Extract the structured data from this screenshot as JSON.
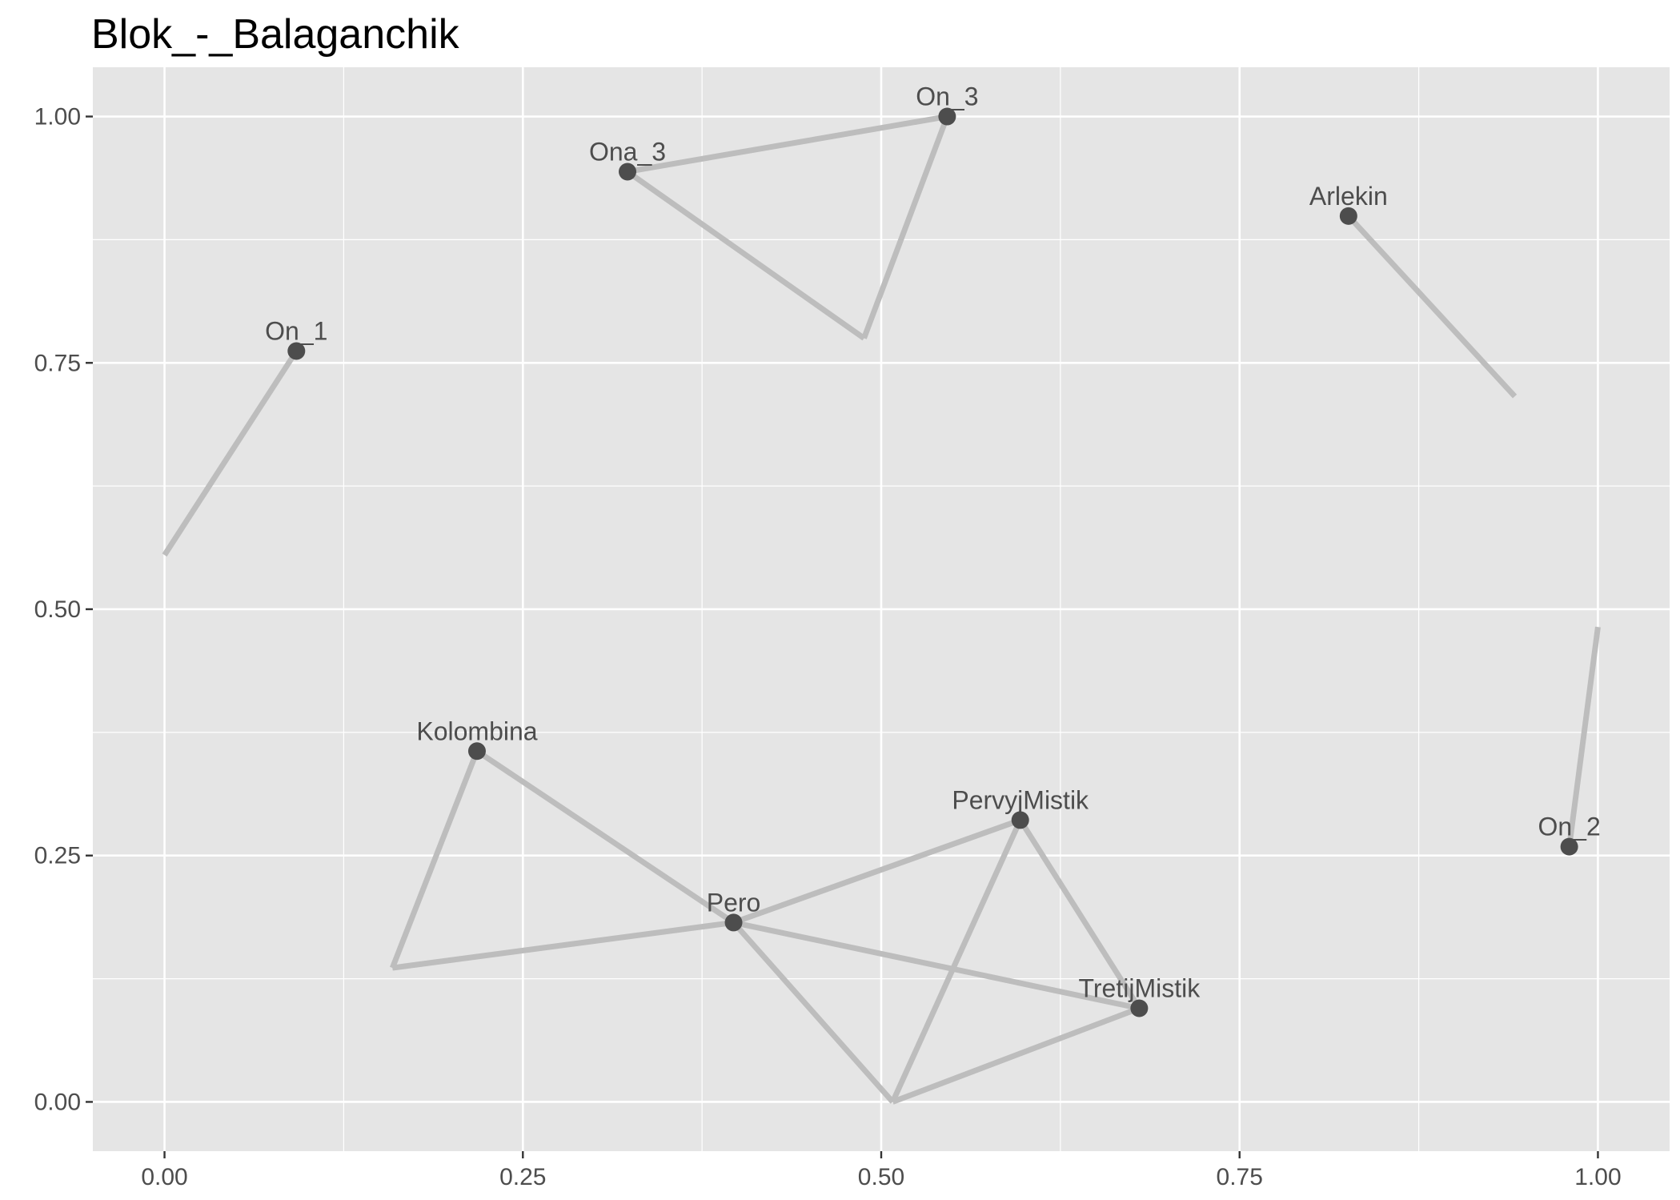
{
  "chart_data": {
    "type": "scatter",
    "title": "Blok_-_Balaganchik",
    "xlabel": "",
    "ylabel": "",
    "xlim": [
      -0.05,
      1.05
    ],
    "ylim": [
      -0.05,
      1.05
    ],
    "x_ticks": [
      0.0,
      0.25,
      0.5,
      0.75,
      1.0
    ],
    "x_tick_labels": [
      "0.00",
      "0.25",
      "0.50",
      "0.75",
      "1.00"
    ],
    "y_ticks": [
      0.0,
      0.25,
      0.5,
      0.75,
      1.0
    ],
    "y_tick_labels": [
      "0.00",
      "0.25",
      "0.50",
      "0.75",
      "1.00"
    ],
    "grid": true,
    "nodes": [
      {
        "label": "On_3",
        "x": 0.546,
        "y": 1.0
      },
      {
        "label": "Ona_3",
        "x": 0.323,
        "y": 0.944
      },
      {
        "label": "Arlekin",
        "x": 0.826,
        "y": 0.899
      },
      {
        "label": "On_1",
        "x": 0.092,
        "y": 0.762
      },
      {
        "label": "Kolombina",
        "x": 0.218,
        "y": 0.356
      },
      {
        "label": "PervyjMistik",
        "x": 0.597,
        "y": 0.286
      },
      {
        "label": "On_2",
        "x": 0.98,
        "y": 0.259
      },
      {
        "label": "Pero",
        "x": 0.397,
        "y": 0.182
      },
      {
        "label": "TretijMistik",
        "x": 0.68,
        "y": 0.095
      }
    ],
    "edges": [
      {
        "x1": 0.323,
        "y1": 0.944,
        "x2": 0.546,
        "y2": 1.0
      },
      {
        "x1": 0.546,
        "y1": 1.0,
        "x2": 0.488,
        "y2": 0.775
      },
      {
        "x1": 0.488,
        "y1": 0.775,
        "x2": 0.323,
        "y2": 0.944
      },
      {
        "x1": 0.826,
        "y1": 0.899,
        "x2": 0.942,
        "y2": 0.716
      },
      {
        "x1": 0.092,
        "y1": 0.762,
        "x2": 0.0,
        "y2": 0.555
      },
      {
        "x1": 0.98,
        "y1": 0.259,
        "x2": 1.0,
        "y2": 0.482
      },
      {
        "x1": 0.218,
        "y1": 0.356,
        "x2": 0.397,
        "y2": 0.182
      },
      {
        "x1": 0.218,
        "y1": 0.356,
        "x2": 0.159,
        "y2": 0.136
      },
      {
        "x1": 0.159,
        "y1": 0.136,
        "x2": 0.397,
        "y2": 0.182
      },
      {
        "x1": 0.397,
        "y1": 0.182,
        "x2": 0.597,
        "y2": 0.286
      },
      {
        "x1": 0.397,
        "y1": 0.182,
        "x2": 0.68,
        "y2": 0.095
      },
      {
        "x1": 0.397,
        "y1": 0.182,
        "x2": 0.508,
        "y2": 0.0
      },
      {
        "x1": 0.597,
        "y1": 0.286,
        "x2": 0.68,
        "y2": 0.095
      },
      {
        "x1": 0.597,
        "y1": 0.286,
        "x2": 0.508,
        "y2": 0.0
      },
      {
        "x1": 0.508,
        "y1": 0.0,
        "x2": 0.68,
        "y2": 0.095
      }
    ],
    "colors": {
      "panel_background": "#e5e5e5",
      "grid_line": "#ffffff",
      "edge": "#bdbdbd",
      "node": "#4d4d4d",
      "label": "#4d4d4d"
    }
  }
}
